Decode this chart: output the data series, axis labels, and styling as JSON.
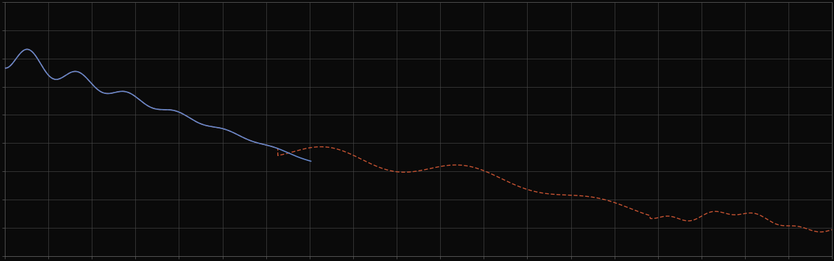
{
  "background_color": "#0a0a0a",
  "plot_bg_color": "#0a0a0a",
  "grid_color": "#4a4a4a",
  "blue_color": "#6688cc",
  "red_color": "#cc5533",
  "xlim": [
    0,
    100
  ],
  "ylim": [
    0,
    10
  ],
  "figsize": [
    12.09,
    3.78
  ],
  "dpi": 100,
  "n_x_major": 19,
  "n_y_major": 9
}
